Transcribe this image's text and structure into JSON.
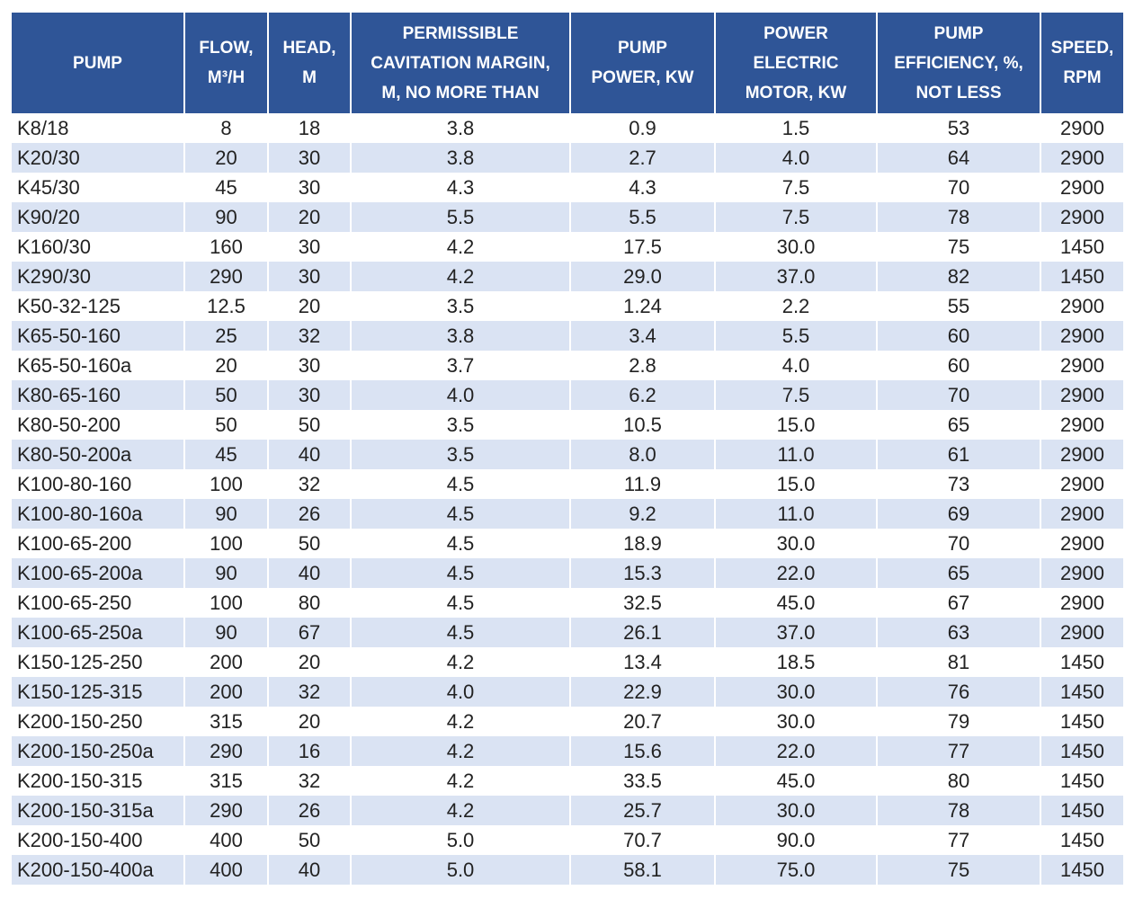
{
  "table": {
    "header": [
      [
        "PUMP"
      ],
      [
        "FLOW,",
        "M³/H"
      ],
      [
        "HEAD,",
        "M"
      ],
      [
        "PERMISSIBLE",
        "CAVITATION MARGIN,",
        "M, NO MORE THAN"
      ],
      [
        "PUMP",
        "POWER, KW"
      ],
      [
        "POWER",
        "ELECTRIC",
        "MOTOR, KW"
      ],
      [
        "PUMP",
        "EFFICIENCY, %,",
        "NOT LESS"
      ],
      [
        "SPEED,",
        "RPM"
      ]
    ],
    "rows": [
      [
        "K8/18",
        "8",
        "18",
        "3.8",
        "0.9",
        "1.5",
        "53",
        "2900"
      ],
      [
        "K20/30",
        "20",
        "30",
        "3.8",
        "2.7",
        "4.0",
        "64",
        "2900"
      ],
      [
        "K45/30",
        "45",
        "30",
        "4.3",
        "4.3",
        "7.5",
        "70",
        "2900"
      ],
      [
        "K90/20",
        "90",
        "20",
        "5.5",
        "5.5",
        "7.5",
        "78",
        "2900"
      ],
      [
        "K160/30",
        "160",
        "30",
        "4.2",
        "17.5",
        "30.0",
        "75",
        "1450"
      ],
      [
        "K290/30",
        "290",
        "30",
        "4.2",
        "29.0",
        "37.0",
        "82",
        "1450"
      ],
      [
        "K50-32-125",
        "12.5",
        "20",
        "3.5",
        "1.24",
        "2.2",
        "55",
        "2900"
      ],
      [
        "K65-50-160",
        "25",
        "32",
        "3.8",
        "3.4",
        "5.5",
        "60",
        "2900"
      ],
      [
        "K65-50-160a",
        "20",
        "30",
        "3.7",
        "2.8",
        "4.0",
        "60",
        "2900"
      ],
      [
        "K80-65-160",
        "50",
        "30",
        "4.0",
        "6.2",
        "7.5",
        "70",
        "2900"
      ],
      [
        "K80-50-200",
        "50",
        "50",
        "3.5",
        "10.5",
        "15.0",
        "65",
        "2900"
      ],
      [
        "K80-50-200a",
        "45",
        "40",
        "3.5",
        "8.0",
        "11.0",
        "61",
        "2900"
      ],
      [
        "K100-80-160",
        "100",
        "32",
        "4.5",
        "11.9",
        "15.0",
        "73",
        "2900"
      ],
      [
        "K100-80-160a",
        "90",
        "26",
        "4.5",
        "9.2",
        "11.0",
        "69",
        "2900"
      ],
      [
        "K100-65-200",
        "100",
        "50",
        "4.5",
        "18.9",
        "30.0",
        "70",
        "2900"
      ],
      [
        "K100-65-200a",
        "90",
        "40",
        "4.5",
        "15.3",
        "22.0",
        "65",
        "2900"
      ],
      [
        "K100-65-250",
        "100",
        "80",
        "4.5",
        "32.5",
        "45.0",
        "67",
        "2900"
      ],
      [
        "K100-65-250a",
        "90",
        "67",
        "4.5",
        "26.1",
        "37.0",
        "63",
        "2900"
      ],
      [
        "K150-125-250",
        "200",
        "20",
        "4.2",
        "13.4",
        "18.5",
        "81",
        "1450"
      ],
      [
        "K150-125-315",
        "200",
        "32",
        "4.0",
        "22.9",
        "30.0",
        "76",
        "1450"
      ],
      [
        "K200-150-250",
        "315",
        "20",
        "4.2",
        "20.7",
        "30.0",
        "79",
        "1450"
      ],
      [
        "K200-150-250a",
        "290",
        "16",
        "4.2",
        "15.6",
        "22.0",
        "77",
        "1450"
      ],
      [
        "K200-150-315",
        "315",
        "32",
        "4.2",
        "33.5",
        "45.0",
        "80",
        "1450"
      ],
      [
        "K200-150-315a",
        "290",
        "26",
        "4.2",
        "25.7",
        "30.0",
        "78",
        "1450"
      ],
      [
        "K200-150-400",
        "400",
        "50",
        "5.0",
        "70.7",
        "90.0",
        "77",
        "1450"
      ],
      [
        "K200-150-400a",
        "400",
        "40",
        "5.0",
        "58.1",
        "75.0",
        "75",
        "1450"
      ]
    ]
  }
}
